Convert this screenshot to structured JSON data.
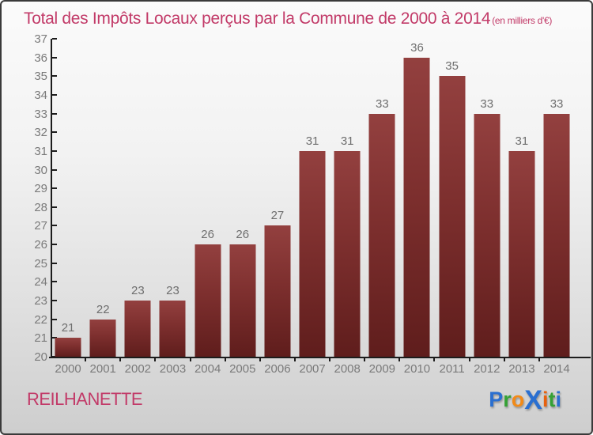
{
  "title": {
    "text": "Total des Impôts Locaux perçus par la Commune de 2000 à 2014",
    "suffix": "(en milliers d'€)"
  },
  "footer": {
    "commune": "REILHANETTE",
    "logo_name": "proxiti-logo",
    "logo_letters": [
      {
        "ch": "P",
        "color": "#2a6fd0",
        "big": false
      },
      {
        "ch": "r",
        "color": "#35a135",
        "big": false
      },
      {
        "ch": "o",
        "color": "#f28a17",
        "big": false
      },
      {
        "ch": "X",
        "color": "#2a6fd0",
        "big": true
      },
      {
        "ch": "i",
        "color": "#e8610e",
        "big": false
      },
      {
        "ch": "t",
        "color": "#35a135",
        "big": false
      },
      {
        "ch": "i",
        "color": "#2a6fd0",
        "big": false
      }
    ]
  },
  "colors": {
    "title_text": "#c23a68",
    "axis": "#1c1c1c",
    "tick_labels": "#7a7a7a",
    "value_labels": "#6e6e6e",
    "bar_top": "#93403f",
    "bar_bottom": "#5f1d1c",
    "background_top": "#fbfbfb",
    "background_bottom": "#cecece"
  },
  "chart_data": {
    "type": "bar",
    "title": "Total des Impôts Locaux perçus par la Commune de 2000 à 2014 (en milliers d'€)",
    "categories": [
      "2000",
      "2001",
      "2002",
      "2003",
      "2004",
      "2005",
      "2006",
      "2007",
      "2008",
      "2009",
      "2010",
      "2011",
      "2012",
      "2013",
      "2014"
    ],
    "values": [
      21,
      22,
      23,
      23,
      26,
      26,
      27,
      31,
      31,
      33,
      36,
      35,
      33,
      31,
      33
    ],
    "xlabel": "",
    "ylabel": "",
    "ylim": [
      20,
      37
    ],
    "yticks": [
      20,
      21,
      22,
      23,
      24,
      25,
      26,
      27,
      28,
      29,
      30,
      31,
      32,
      33,
      34,
      35,
      36,
      37
    ],
    "grid": false,
    "legend": "none",
    "data_labels": true
  }
}
